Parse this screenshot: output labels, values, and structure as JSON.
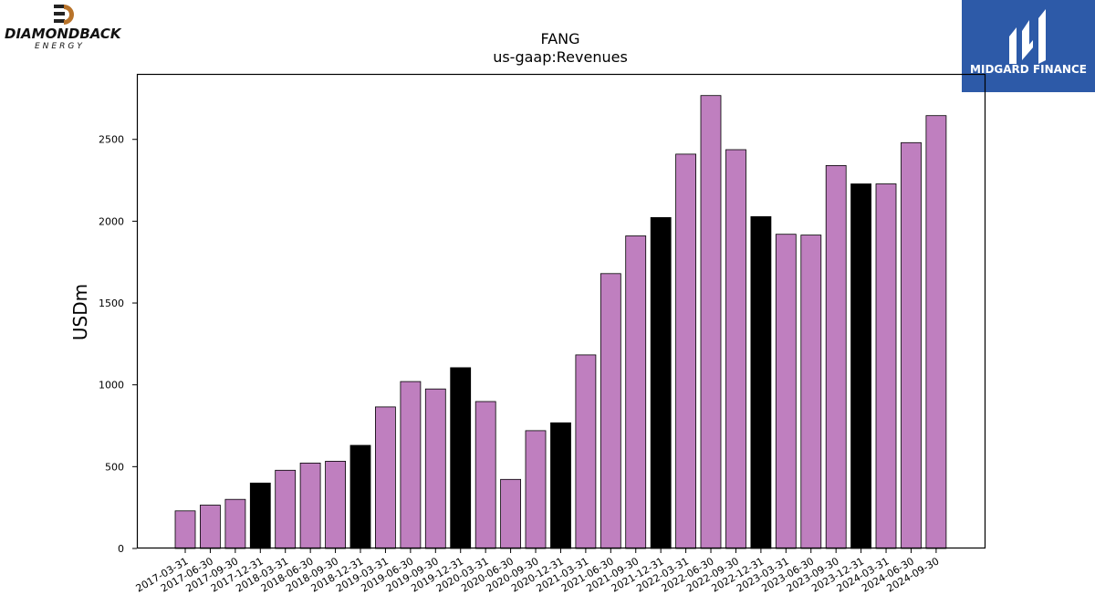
{
  "logos": {
    "left": {
      "name": "DIAMONDBACK",
      "sub": "ENERGY",
      "accent": "#b8732a"
    },
    "right": {
      "name": "MIDGARD FINANCE",
      "bg": "#2d5aa8"
    }
  },
  "chart_data": {
    "type": "bar",
    "title": "FANG",
    "subtitle": "us-gaap:Revenues",
    "xlabel": "",
    "ylabel": "USDm",
    "ylim": [
      0,
      2900
    ],
    "yticks": [
      0,
      500,
      1000,
      1500,
      2000,
      2500
    ],
    "grid": false,
    "colors": {
      "quarter": "#bf7fbf",
      "year_end": "#000000"
    },
    "categories": [
      "2017-03-31",
      "2017-06-30",
      "2017-09-30",
      "2017-12-31",
      "2018-03-31",
      "2018-06-30",
      "2018-09-30",
      "2018-12-31",
      "2019-03-31",
      "2019-06-30",
      "2019-09-30",
      "2019-12-31",
      "2020-03-31",
      "2020-06-30",
      "2020-09-30",
      "2020-12-31",
      "2021-03-31",
      "2021-06-30",
      "2021-09-30",
      "2021-12-31",
      "2022-03-31",
      "2022-06-30",
      "2022-09-30",
      "2022-12-31",
      "2023-03-31",
      "2023-06-30",
      "2023-09-30",
      "2023-12-31",
      "2024-03-31",
      "2024-06-30",
      "2024-09-30"
    ],
    "values": [
      230,
      265,
      300,
      400,
      478,
      522,
      533,
      630,
      865,
      1020,
      975,
      1105,
      898,
      422,
      720,
      768,
      1183,
      1680,
      1910,
      2022,
      2410,
      2768,
      2437,
      2028,
      1920,
      1915,
      2340,
      2228,
      2228,
      2480,
      2645
    ],
    "year_end": [
      false,
      false,
      false,
      true,
      false,
      false,
      false,
      true,
      false,
      false,
      false,
      true,
      false,
      false,
      false,
      true,
      false,
      false,
      false,
      true,
      false,
      false,
      false,
      true,
      false,
      false,
      false,
      true,
      false,
      false,
      false
    ]
  }
}
